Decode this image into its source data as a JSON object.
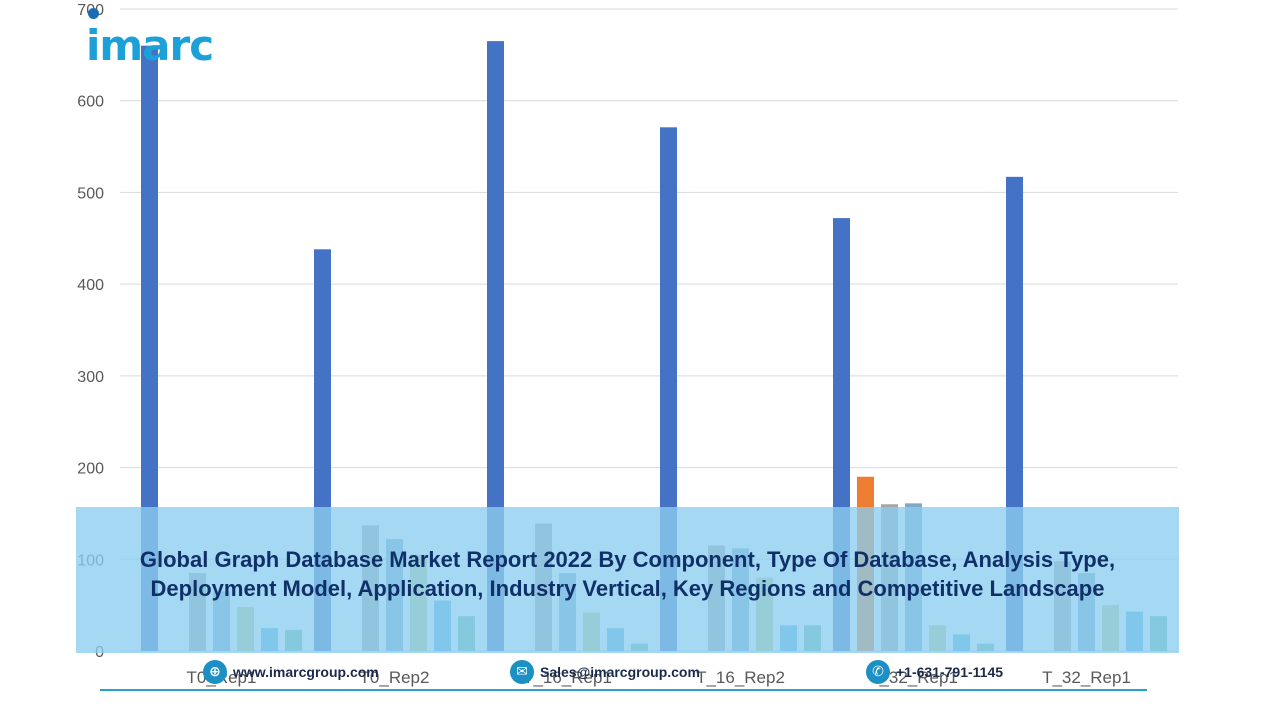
{
  "logo": {
    "text": "imarc"
  },
  "banner": {
    "title": "Global Graph Database Market Report 2022 By Component, Type Of Database, Analysis Type, Deployment Model, Application, Industry Vertical, Key Regions and Competitive Landscape"
  },
  "footer": {
    "website": "www.imarcgroup.com",
    "email": "Sales@imarcgroup.com",
    "phone": "+1-631-791-1145",
    "icons": [
      "globe-icon",
      "mail-icon",
      "phone-icon"
    ]
  },
  "chart_data": {
    "type": "bar",
    "title": "",
    "xlabel": "",
    "ylabel": "",
    "ylim": [
      0,
      700
    ],
    "yticks": [
      0,
      100,
      200,
      300,
      400,
      500,
      600,
      700
    ],
    "grid": true,
    "categories": [
      "T0_Rep1",
      "T0_Rep2",
      "T_16_Rep1",
      "T_16_Rep2",
      "T_32_Rep1",
      "T_32_Rep1"
    ],
    "series_colors": [
      "#4472c4",
      "#ed7d31",
      "#a5a5a5",
      "#7fa9c9",
      "#b9cc8c",
      "#5aaee0",
      "#6bb99f"
    ],
    "series": [
      {
        "values": [
          660,
          438,
          665,
          571,
          472,
          517
        ]
      },
      {
        "values": [
          0,
          0,
          0,
          0,
          190,
          0
        ]
      },
      {
        "values": [
          85,
          137,
          139,
          115,
          160,
          98
        ]
      },
      {
        "values": [
          65,
          122,
          85,
          112,
          161,
          85
        ]
      },
      {
        "values": [
          48,
          105,
          42,
          80,
          28,
          50
        ]
      },
      {
        "values": [
          25,
          55,
          25,
          28,
          18,
          43
        ]
      },
      {
        "values": [
          23,
          38,
          8,
          28,
          8,
          38
        ]
      }
    ]
  }
}
